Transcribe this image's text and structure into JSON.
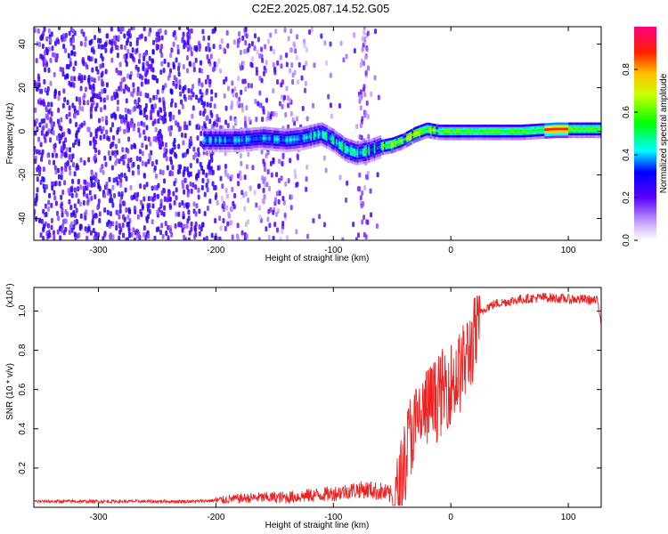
{
  "title": "C2E2.2025.087.14.52.G05",
  "chart_data": [
    {
      "type": "heatmap",
      "name": "spectrogram",
      "xlabel": "Height of straight line (km)",
      "ylabel": "Frequency (Hz)",
      "xlim": [
        -355,
        128
      ],
      "ylim": [
        -50,
        48
      ],
      "xticks": [
        -300,
        -200,
        -100,
        0,
        100
      ],
      "yticks": [
        -40,
        -20,
        0,
        20,
        40
      ],
      "colorbar": {
        "label": "Normalized spectral amplitude",
        "range": [
          0,
          1
        ],
        "ticks": [
          "0.0",
          "0.2",
          "0.4",
          "0.6",
          "0.8"
        ],
        "tick_values": [
          0.0,
          0.2,
          0.4,
          0.6,
          0.8
        ]
      },
      "signal_track": [
        {
          "x": -205,
          "f": -4
        },
        {
          "x": -180,
          "f": -4
        },
        {
          "x": -160,
          "f": -3
        },
        {
          "x": -140,
          "f": -4
        },
        {
          "x": -125,
          "f": -3
        },
        {
          "x": -110,
          "f": -1
        },
        {
          "x": -100,
          "f": -4
        },
        {
          "x": -90,
          "f": -8
        },
        {
          "x": -80,
          "f": -10
        },
        {
          "x": -70,
          "f": -9
        },
        {
          "x": -60,
          "f": -7
        },
        {
          "x": -50,
          "f": -6
        },
        {
          "x": -40,
          "f": -4
        },
        {
          "x": -30,
          "f": -1
        },
        {
          "x": -20,
          "f": 1
        },
        {
          "x": -10,
          "f": 0
        },
        {
          "x": 0,
          "f": 0
        },
        {
          "x": 20,
          "f": 0
        },
        {
          "x": 60,
          "f": 0
        },
        {
          "x": 90,
          "f": 1
        },
        {
          "x": 128,
          "f": 1
        }
      ]
    },
    {
      "type": "line",
      "name": "snr",
      "xlabel": "Height of straight line (km)",
      "ylabel": "SNR (10 * v/v)",
      "scale_label": "(x10⁴)",
      "xlim": [
        -355,
        128
      ],
      "ylim": [
        0,
        1.12
      ],
      "xticks": [
        -300,
        -200,
        -100,
        0,
        100
      ],
      "yticks": [
        0.2,
        0.4,
        0.6,
        0.8,
        1.0
      ],
      "yticklabels": [
        "0.2",
        "0.4",
        "0.6",
        "0.8",
        "1.0"
      ],
      "color": "#ef2020",
      "series": [
        {
          "name": "SNR",
          "x": [
            -355,
            -300,
            -250,
            -220,
            -200,
            -180,
            -160,
            -140,
            -120,
            -100,
            -90,
            -80,
            -70,
            -60,
            -50,
            -45,
            -40,
            -35,
            -30,
            -25,
            -20,
            -15,
            -10,
            -5,
            0,
            5,
            10,
            20,
            30,
            40,
            60,
            80,
            100,
            115,
            125,
            128
          ],
          "y": [
            0.03,
            0.03,
            0.03,
            0.03,
            0.035,
            0.045,
            0.05,
            0.05,
            0.06,
            0.07,
            0.08,
            0.09,
            0.09,
            0.08,
            0.06,
            0.15,
            0.3,
            0.45,
            0.5,
            0.55,
            0.6,
            0.62,
            0.65,
            0.7,
            0.72,
            0.75,
            0.8,
            0.95,
            1.02,
            1.04,
            1.06,
            1.07,
            1.06,
            1.06,
            1.05,
            0.95
          ]
        }
      ]
    }
  ]
}
